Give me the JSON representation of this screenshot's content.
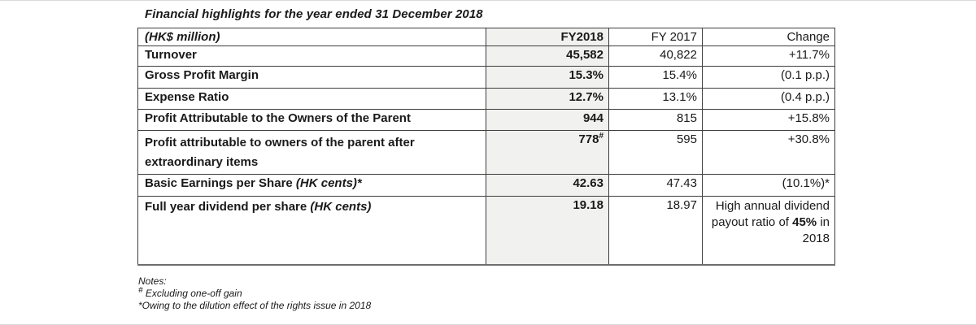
{
  "title": "Financial highlights for the year ended 31 December 2018",
  "table": {
    "header": {
      "col0": "(HK$ million)",
      "col1": "FY2018",
      "col2": "FY 2017",
      "col3": "Change"
    },
    "rows": [
      {
        "label": "Turnover",
        "fy2018": "45,582",
        "fy2017": "40,822",
        "change": "+11.7%"
      },
      {
        "label": "Gross Profit Margin",
        "fy2018": "15.3%",
        "fy2017": "15.4%",
        "change": "(0.1 p.p.)"
      },
      {
        "label": "Expense Ratio",
        "fy2018": "12.7%",
        "fy2017": "13.1%",
        "change": "(0.4 p.p.)"
      },
      {
        "label": "Profit Attributable to the Owners of the Parent",
        "fy2018": "944",
        "fy2017": "815",
        "change": "+15.8%"
      },
      {
        "label": "Profit attributable to owners of the parent after extraordinary items",
        "fy2018": "778",
        "fy2018_sup": "#",
        "fy2017": "595",
        "change": "+30.8%"
      },
      {
        "label": "Basic Earnings per Share",
        "label_italic": " (HK cents)*",
        "fy2018": "42.63",
        "fy2017": "47.43",
        "change": "(10.1%)*"
      },
      {
        "label": "Full year dividend per share",
        "label_italic": " (HK cents)",
        "fy2018": "19.18",
        "fy2017": "18.97",
        "change_pre": "High annual dividend payout ratio of ",
        "change_bold": "45%",
        "change_post": " in 2018"
      }
    ]
  },
  "notes": {
    "heading": "Notes:",
    "note1_sup": "#",
    "note1_text": " Excluding one-off gain",
    "note2": "*Owing to the dilution effect of the rights issue in 2018"
  },
  "colors": {
    "highlight_column_bg": "#f1f1ef",
    "inner_border": "#3d3d3d",
    "outer_bottom_border": "#6e6e6e",
    "text": "#1a1a1a",
    "background": "#ffffff"
  }
}
